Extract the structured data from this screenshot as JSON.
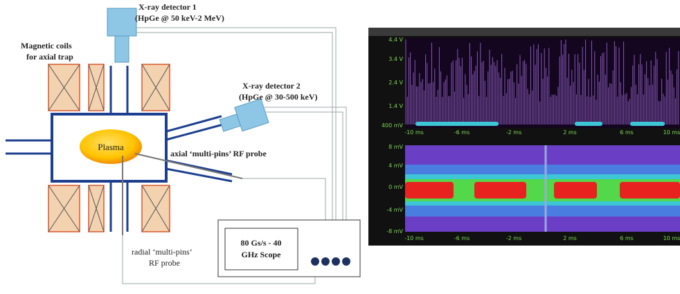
{
  "diagram": {
    "xray_detector_1": [
      "X-ray detector 1",
      "(HpGe @ 50 keV-2 MeV)"
    ],
    "xray_detector_2": [
      "X-ray detector 2",
      "(HpGe @ 30-500 keV)"
    ],
    "magnetic_coils": [
      "Magnetic coils",
      "for axial trap"
    ],
    "plasma": "Plasma",
    "axial_probe": "axial ‘multi-pins’ RF probe",
    "radial_probe": [
      "radial ‘multi-pins’",
      "RF probe"
    ],
    "scope": [
      "80 Gs/s - 40",
      "GHz Scope"
    ]
  },
  "scope_screen": {
    "top": {
      "y_labels": [
        "4.4 V",
        "3.4 V",
        "2.4 V",
        "1.4 V",
        "400 mV"
      ],
      "x_labels": [
        "-10 ms",
        "-6 ms",
        "-2 ms",
        "2 ms",
        "6 ms",
        "10 ms"
      ]
    },
    "bottom": {
      "y_labels": [
        "8 mV",
        "4 mV",
        "0 mV",
        "-4 mV",
        "-8 mV"
      ],
      "x_labels": [
        "-10 ms",
        "-6 ms",
        "-2 ms",
        "2 ms",
        "6 ms",
        "10 ms"
      ]
    }
  }
}
